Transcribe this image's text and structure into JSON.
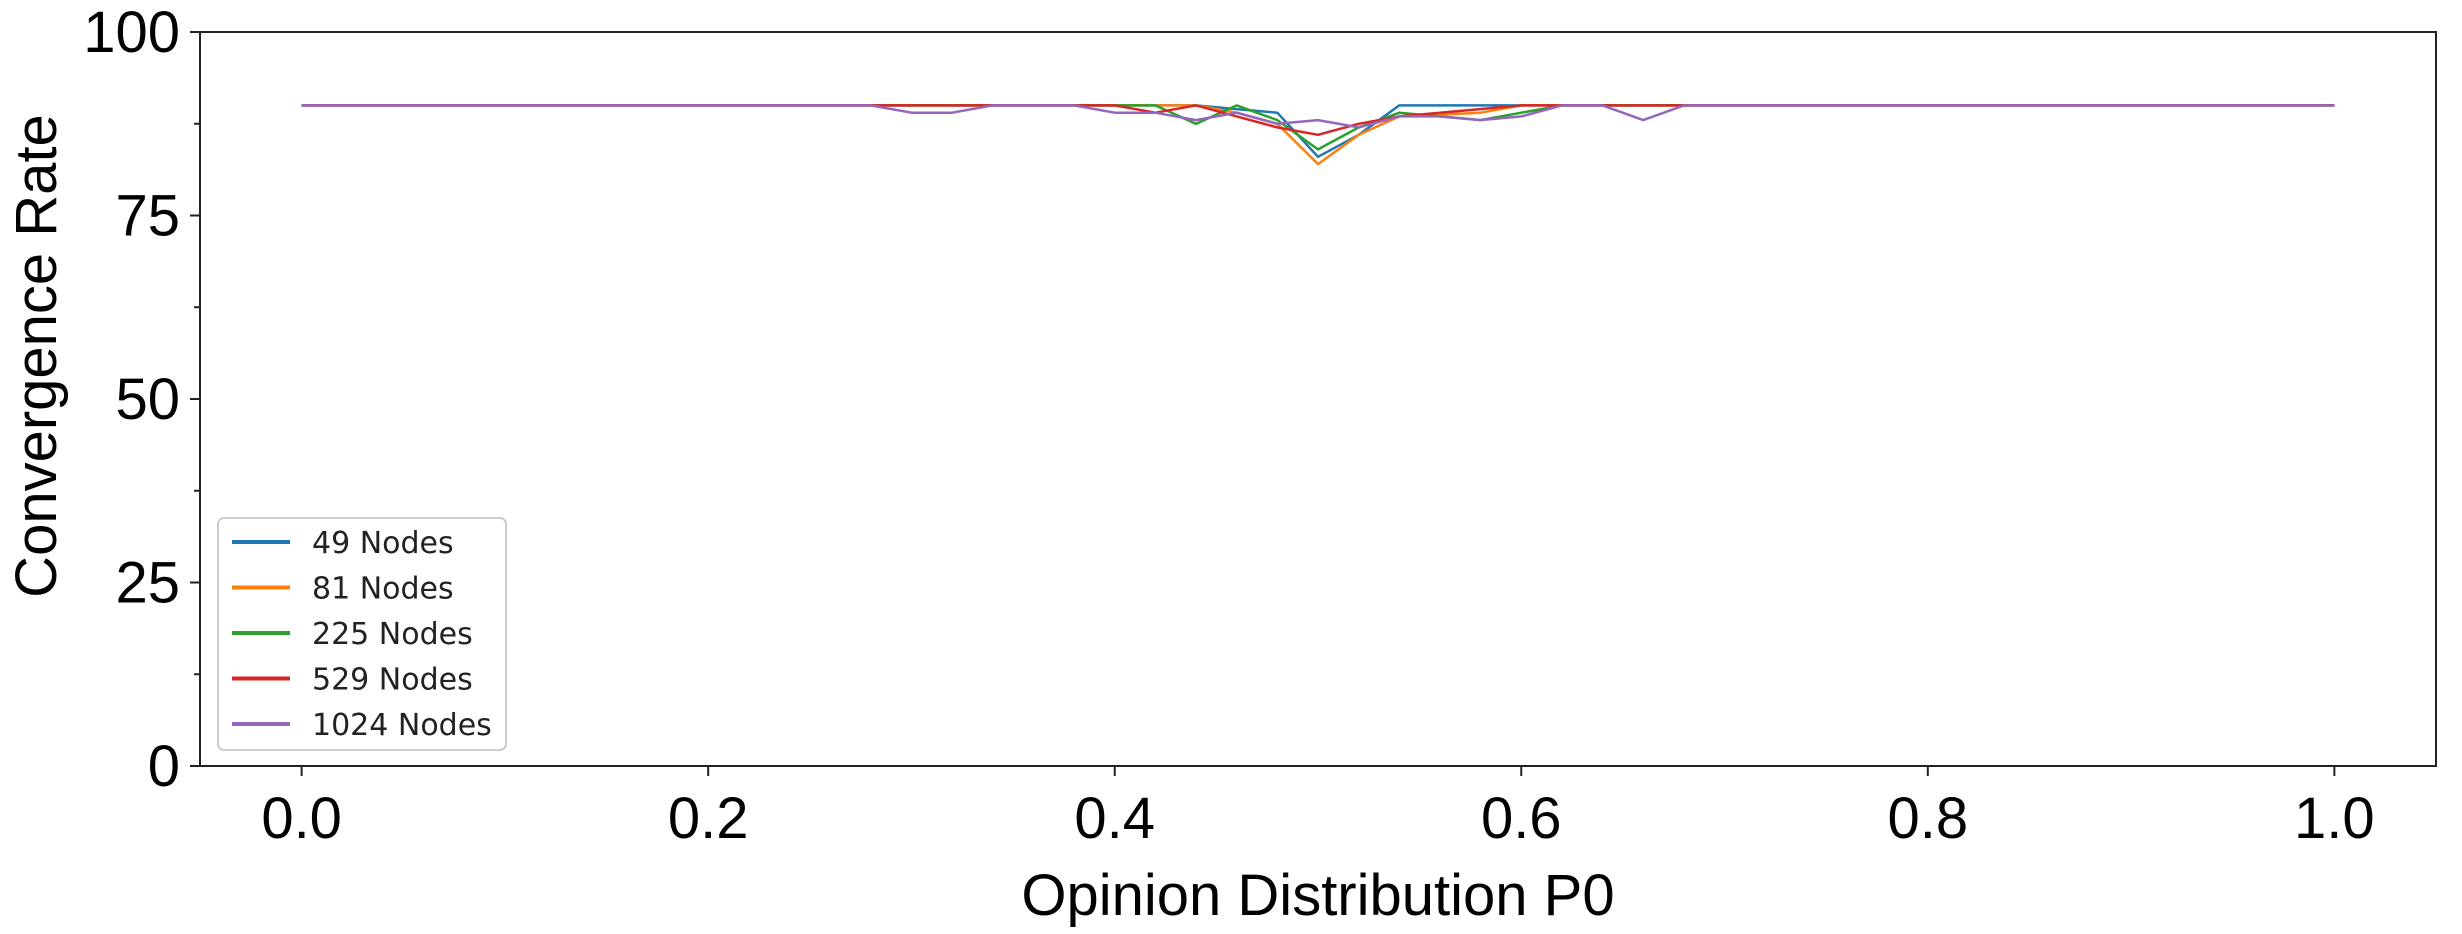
{
  "chart_data": {
    "type": "line",
    "title": "",
    "xlabel": "Opinion Distribution P0",
    "ylabel": "Convergence Rate",
    "xlim": [
      -0.05,
      1.05
    ],
    "ylim": [
      0,
      100
    ],
    "xticks": [
      0.0,
      0.2,
      0.4,
      0.6,
      0.8,
      1.0
    ],
    "xtick_labels": [
      "0.0",
      "0.2",
      "0.4",
      "0.6",
      "0.8",
      "1.0"
    ],
    "yticks": [
      0,
      25,
      50,
      75,
      100
    ],
    "ytick_labels": [
      "0",
      "25",
      "50",
      "75",
      "100"
    ],
    "yminor_ticks": [
      12.5,
      37.5,
      62.5,
      87.5
    ],
    "grid": false,
    "legend_position": "lower-left",
    "series": [
      {
        "name": "49 Nodes",
        "color": "#1f77b4",
        "x": [
          0.0,
          0.38,
          0.44,
          0.46,
          0.48,
          0.5,
          0.52,
          0.54,
          0.62,
          1.0
        ],
        "y": [
          90,
          90,
          90,
          89.5,
          89,
          83,
          86,
          90,
          90,
          90
        ]
      },
      {
        "name": "81 Nodes",
        "color": "#ff7f0e",
        "x": [
          0.0,
          0.44,
          0.46,
          0.48,
          0.5,
          0.52,
          0.54,
          0.58,
          0.6,
          1.0
        ],
        "y": [
          90,
          90,
          89,
          87.5,
          82,
          86,
          88.5,
          89,
          90,
          90
        ]
      },
      {
        "name": "225 Nodes",
        "color": "#2ca02c",
        "x": [
          0.0,
          0.42,
          0.44,
          0.46,
          0.48,
          0.5,
          0.52,
          0.54,
          0.56,
          0.58,
          0.6,
          0.62,
          1.0
        ],
        "y": [
          90,
          90,
          87.5,
          90,
          88,
          84,
          87,
          89,
          88.5,
          88,
          89,
          90,
          90
        ]
      },
      {
        "name": "529 Nodes",
        "color": "#d62728",
        "x": [
          0.0,
          0.4,
          0.42,
          0.44,
          0.46,
          0.48,
          0.5,
          0.52,
          0.54,
          0.56,
          0.6,
          1.0
        ],
        "y": [
          90,
          90,
          89,
          90,
          88.5,
          87,
          86,
          87.5,
          88.5,
          89,
          90,
          90
        ]
      },
      {
        "name": "1024 Nodes",
        "color": "#9467bd",
        "x": [
          0.0,
          0.28,
          0.3,
          0.32,
          0.34,
          0.38,
          0.4,
          0.42,
          0.44,
          0.46,
          0.48,
          0.5,
          0.52,
          0.54,
          0.56,
          0.58,
          0.6,
          0.62,
          0.64,
          0.66,
          0.68,
          1.0
        ],
        "y": [
          90,
          90,
          89,
          89,
          90,
          90,
          89,
          89,
          88,
          89,
          87.5,
          88,
          87,
          88.5,
          88.5,
          88,
          88.5,
          90,
          90,
          88,
          90,
          90
        ]
      }
    ]
  }
}
